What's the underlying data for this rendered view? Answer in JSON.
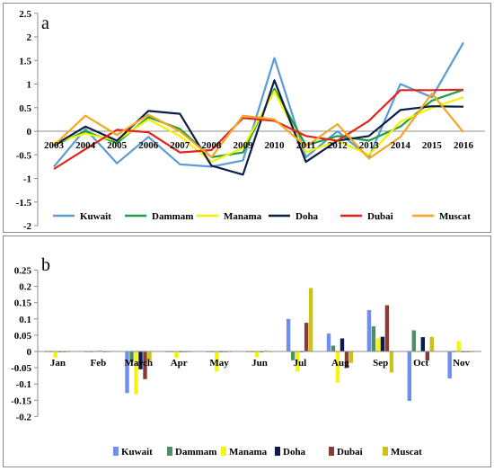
{
  "chart_data": [
    {
      "type": "line",
      "panel_label": "a",
      "categories": [
        "2003",
        "2004",
        "2005",
        "2006",
        "2007",
        "2008",
        "2009",
        "2010",
        "2011",
        "2012",
        "2013",
        "2014",
        "2015",
        "2016"
      ],
      "yticks": [
        "-2",
        "-1.5",
        "-1",
        "-0.5",
        "0",
        "0.5",
        "1",
        "1.5",
        "2",
        "2.5"
      ],
      "ylim": [
        -2,
        2.5
      ],
      "grid": false,
      "legend_position": "bottom",
      "series": [
        {
          "name": "Kuwait",
          "color": "#5b9bd5",
          "values": [
            -0.75,
            0.05,
            -0.68,
            -0.12,
            -0.7,
            -0.75,
            -0.62,
            1.55,
            -0.55,
            0.0,
            -0.55,
            1.0,
            0.72,
            1.88
          ]
        },
        {
          "name": "Dammam",
          "color": "#1e9f3c",
          "values": [
            -0.3,
            0.0,
            -0.25,
            0.3,
            0.05,
            -0.55,
            -0.45,
            0.9,
            -0.3,
            -0.1,
            -0.2,
            0.1,
            0.65,
            0.88
          ]
        },
        {
          "name": "Manama",
          "color": "#f2f200",
          "values": [
            -0.25,
            -0.05,
            -0.2,
            0.25,
            -0.1,
            -0.65,
            -0.35,
            0.85,
            -0.45,
            -0.2,
            -0.5,
            0.2,
            0.5,
            0.72
          ]
        },
        {
          "name": "Doha",
          "color": "#0b1e4a",
          "values": [
            -0.3,
            0.1,
            -0.2,
            0.43,
            0.37,
            -0.73,
            -0.92,
            1.08,
            -0.65,
            -0.2,
            -0.1,
            0.45,
            0.53,
            0.52
          ]
        },
        {
          "name": "Dubai",
          "color": "#e3241b",
          "values": [
            -0.8,
            -0.38,
            0.03,
            -0.02,
            -0.45,
            -0.4,
            0.28,
            0.22,
            -0.1,
            -0.2,
            0.22,
            0.87,
            0.87,
            0.88
          ]
        },
        {
          "name": "Muscat",
          "color": "#f5a623",
          "values": [
            -0.3,
            0.33,
            -0.08,
            0.35,
            0.0,
            -0.55,
            0.33,
            0.25,
            -0.32,
            0.15,
            -0.58,
            -0.12,
            0.8,
            -0.02
          ]
        }
      ]
    },
    {
      "type": "bar",
      "panel_label": "b",
      "categories": [
        "Jan",
        "Feb",
        "March",
        "Apr",
        "May",
        "Jun",
        "Jul",
        "Aug",
        "Sep",
        "Oct",
        "Nov"
      ],
      "yticks": [
        "-0.2",
        "-0.15",
        "-0.1",
        "-0.05",
        "0",
        "0.05",
        "0.1",
        "0.15",
        "0.2",
        "0.25"
      ],
      "ylim": [
        -0.2,
        0.25
      ],
      "grid": false,
      "legend_position": "bottom",
      "series": [
        {
          "name": "Kuwait",
          "color": "#6f8ff0",
          "values": [
            -0.002,
            0.0,
            -0.128,
            -0.002,
            -0.002,
            0.0,
            0.1,
            0.055,
            0.127,
            -0.152,
            -0.083
          ]
        },
        {
          "name": "Dammam",
          "color": "#4f8f66",
          "values": [
            0.0,
            0.0,
            -0.032,
            0.0,
            0.0,
            0.0,
            -0.027,
            0.018,
            0.077,
            0.065,
            0.0
          ]
        },
        {
          "name": "Manama",
          "color": "#f5f50a",
          "values": [
            -0.02,
            0.0,
            -0.132,
            -0.02,
            -0.062,
            -0.018,
            -0.062,
            -0.095,
            0.04,
            0.0,
            0.032
          ]
        },
        {
          "name": "Doha",
          "color": "#0e1a4d",
          "values": [
            0.0,
            0.002,
            -0.055,
            0.0,
            0.0,
            0.0,
            0.0,
            0.04,
            0.045,
            0.044,
            0.0
          ]
        },
        {
          "name": "Dubai",
          "color": "#8b3a35",
          "values": [
            0.0,
            0.0,
            -0.085,
            0.0,
            0.0,
            0.002,
            0.088,
            -0.05,
            0.142,
            -0.028,
            -0.002
          ]
        },
        {
          "name": "Muscat",
          "color": "#c9c41a",
          "values": [
            0.0,
            0.0,
            -0.03,
            0.0,
            0.0,
            0.0,
            0.195,
            -0.035,
            -0.065,
            0.045,
            0.0
          ]
        }
      ]
    }
  ]
}
